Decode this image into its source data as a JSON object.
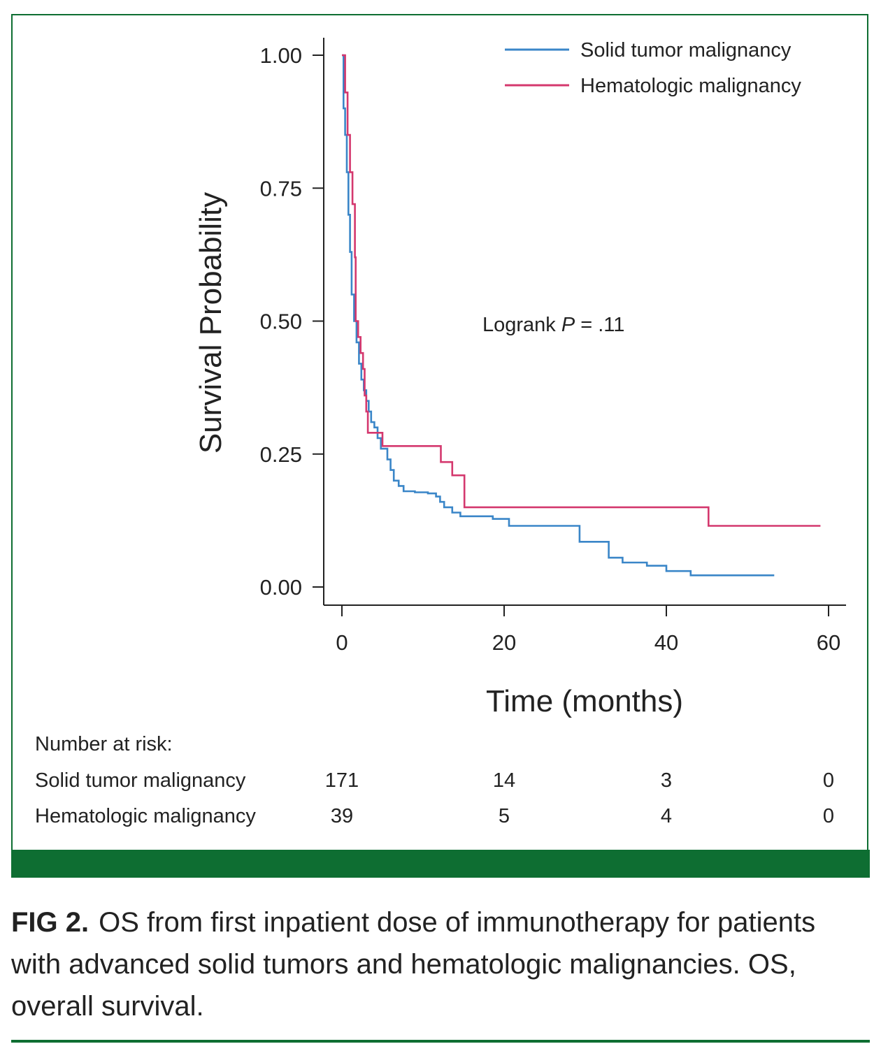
{
  "figure": {
    "fig_label": "FIG 2.",
    "caption": "OS from first inpatient dose of immunotherapy for patients with advanced solid tumors and hematologic malignancies. OS, overall survival."
  },
  "chart_data": {
    "type": "line",
    "subtype": "kaplan-meier-step",
    "ylabel": "Survival Probability",
    "xlabel": "Time (months)",
    "xlim": [
      0,
      60
    ],
    "ylim": [
      0,
      1
    ],
    "xticks": [
      "0",
      "20",
      "40",
      "60"
    ],
    "yticks": [
      "0.00",
      "0.25",
      "0.50",
      "0.75",
      "1.00"
    ],
    "grid": false,
    "legend_position": "top-right",
    "annotation_prefix": "Logrank ",
    "annotation_p": "P",
    "annotation_suffix": " = .11",
    "series": [
      {
        "name": "Solid tumor malignancy",
        "color": "#3a86c8",
        "points": [
          [
            0,
            1.0
          ],
          [
            0.2,
            0.9
          ],
          [
            0.4,
            0.85
          ],
          [
            0.6,
            0.78
          ],
          [
            0.8,
            0.7
          ],
          [
            1.0,
            0.63
          ],
          [
            1.2,
            0.55
          ],
          [
            1.5,
            0.5
          ],
          [
            1.8,
            0.46
          ],
          [
            2.1,
            0.42
          ],
          [
            2.4,
            0.39
          ],
          [
            2.7,
            0.37
          ],
          [
            3.0,
            0.35
          ],
          [
            3.3,
            0.33
          ],
          [
            3.6,
            0.31
          ],
          [
            4.0,
            0.3
          ],
          [
            4.4,
            0.28
          ],
          [
            4.8,
            0.26
          ],
          [
            5.6,
            0.24
          ],
          [
            6.0,
            0.22
          ],
          [
            6.4,
            0.2
          ],
          [
            7.0,
            0.19
          ],
          [
            7.6,
            0.18
          ],
          [
            9.0,
            0.178
          ],
          [
            10.6,
            0.176
          ],
          [
            11.6,
            0.17
          ],
          [
            12.1,
            0.16
          ],
          [
            12.6,
            0.15
          ],
          [
            13.6,
            0.14
          ],
          [
            14.6,
            0.133
          ],
          [
            18.6,
            0.128
          ],
          [
            20.6,
            0.115
          ],
          [
            29.2,
            0.115
          ],
          [
            29.3,
            0.085
          ],
          [
            32.8,
            0.085
          ],
          [
            32.9,
            0.055
          ],
          [
            34.6,
            0.046
          ],
          [
            37.6,
            0.04
          ],
          [
            40.0,
            0.03
          ],
          [
            43.0,
            0.022
          ],
          [
            53.3,
            0.022
          ]
        ]
      },
      {
        "name": "Hematologic malignancy",
        "color": "#d4386e",
        "points": [
          [
            0,
            1.0
          ],
          [
            0.4,
            0.93
          ],
          [
            0.7,
            0.85
          ],
          [
            1.0,
            0.78
          ],
          [
            1.3,
            0.72
          ],
          [
            1.6,
            0.62
          ],
          [
            1.7,
            0.5
          ],
          [
            2.0,
            0.47
          ],
          [
            2.3,
            0.44
          ],
          [
            2.6,
            0.41
          ],
          [
            2.8,
            0.36
          ],
          [
            3.0,
            0.33
          ],
          [
            3.2,
            0.29
          ],
          [
            5.0,
            0.265
          ],
          [
            12.2,
            0.235
          ],
          [
            13.6,
            0.21
          ],
          [
            15.1,
            0.15
          ],
          [
            45.2,
            0.115
          ],
          [
            59.0,
            0.115
          ]
        ]
      }
    ],
    "risk_table": {
      "title": "Number at risk:",
      "rows": [
        {
          "label": "Solid tumor malignancy",
          "values": [
            "171",
            "14",
            "3",
            "0"
          ]
        },
        {
          "label": "Hematologic malignancy",
          "values": [
            "39",
            "5",
            "4",
            "0"
          ]
        }
      ]
    }
  }
}
